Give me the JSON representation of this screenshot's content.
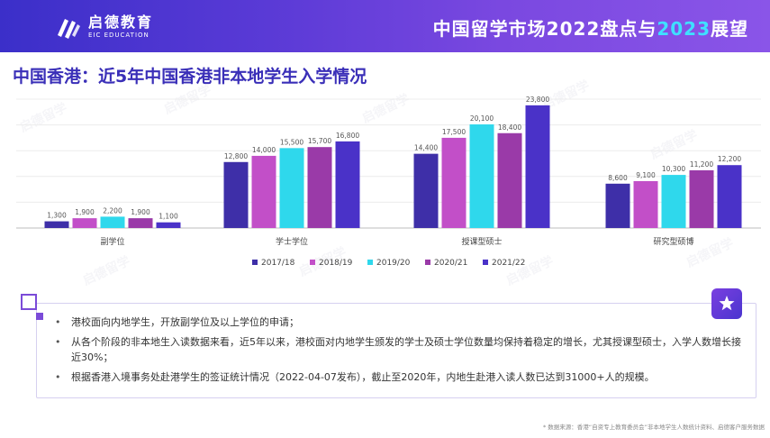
{
  "header": {
    "logo_cn": "启德教育",
    "logo_en": "EIC EDUCATION",
    "title_prefix": "中国留学市场2022盘点与",
    "title_year": "2023",
    "title_suffix": "展望"
  },
  "page_title": "中国香港：近5年中国香港非本地学生入学情况",
  "watermark_text": "启德留学",
  "colors": {
    "banner": "#5a3ad6",
    "title": "#3a2fb8",
    "series": [
      "#3e2fa8",
      "#c24fc8",
      "#2fd8ec",
      "#9a3aa8",
      "#4a32c8"
    ]
  },
  "chart_data": {
    "type": "bar",
    "categories": [
      "副学位",
      "学士学位",
      "授课型硕士",
      "研究型硕博"
    ],
    "series": [
      {
        "name": "2017/18",
        "values": [
          1300,
          12800,
          14400,
          8600
        ]
      },
      {
        "name": "2018/19",
        "values": [
          1900,
          14000,
          17500,
          9100
        ]
      },
      {
        "name": "2019/20",
        "values": [
          2200,
          15500,
          20100,
          10300
        ]
      },
      {
        "name": "2020/21",
        "values": [
          1900,
          15700,
          18400,
          11200
        ]
      },
      {
        "name": "2021/22",
        "values": [
          1100,
          16800,
          23800,
          12200
        ]
      }
    ],
    "ylim": [
      0,
      25000
    ],
    "grid": true,
    "legend": "bottom"
  },
  "notes": [
    "港校面向内地学生，开放副学位及以上学位的申请；",
    "从各个阶段的非本地生入读数据来看，近5年以来，港校面对内地学生颁发的学士及硕士学位数量均保持着稳定的增长，尤其授课型硕士，入学人数增长接近30%；",
    "根据香港入境事务处赴港学生的签证统计情况（2022-04-07发布），截止至2020年，内地生赴港入读人数已达到31000+人的规模。"
  ],
  "footnote": "* 数据来源：香港“自资专上教育委员会”非本地学生人数统计资料、启德客户服务数据"
}
